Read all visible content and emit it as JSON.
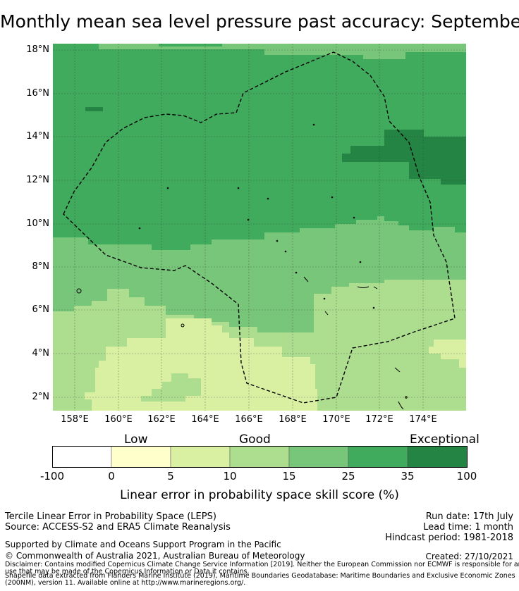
{
  "title": "Monthly mean sea level pressure past accuracy: September",
  "map": {
    "lat_labels": [
      "18°N",
      "16°N",
      "14°N",
      "12°N",
      "10°N",
      "8°N",
      "6°N",
      "4°N",
      "2°N"
    ],
    "lon_labels": [
      "158°E",
      "160°E",
      "162°E",
      "164°E",
      "166°E",
      "168°E",
      "170°E",
      "172°E",
      "174°E"
    ],
    "legend_categories": [
      "Low",
      "Good",
      "Exceptional"
    ],
    "colorbar": {
      "ticks": [
        "-100",
        "0",
        "5",
        "10",
        "15",
        "25",
        "35",
        "100"
      ],
      "colors": [
        "#ffffff",
        "#ffffcc",
        "#d9f0a3",
        "#addd8e",
        "#78c679",
        "#41ab5d",
        "#238443"
      ],
      "label": "Linear error in probability space skill score (%)"
    }
  },
  "footer": {
    "method": "Tercile Linear Error in Probability Space (LEPS)",
    "source": "Source: ACCESS-S2 and ERA5 Climate Reanalysis",
    "run_date": "Run date: 17th July",
    "lead_time": "Lead time: 1 month",
    "hindcast": "Hindcast period: 1981-2018",
    "supported": "Supported by Climate and Oceans Support Program in the Pacific",
    "copyright": "© Commonwealth of Australia 2021, Australian Bureau of Meteorology",
    "created": "Created: 27/10/2021",
    "disclaimer1": "Disclaimer: Contains modified Copernicus Climate Change Service Information [2019]. Neither the European Commission nor ECMWF is responsible for any",
    "disclaimer2": "use that may be made of the Copernicus Information or Data it contains.",
    "shapefile1": "Shapefile data extracted from Flanders Marine Institute (2019), Maritime Boundaries Geodatabase: Maritime Boundaries and Exclusive Economic Zones",
    "shapefile2": "(200NM), version 11. Available online at http://www.marineregions.org/."
  }
}
